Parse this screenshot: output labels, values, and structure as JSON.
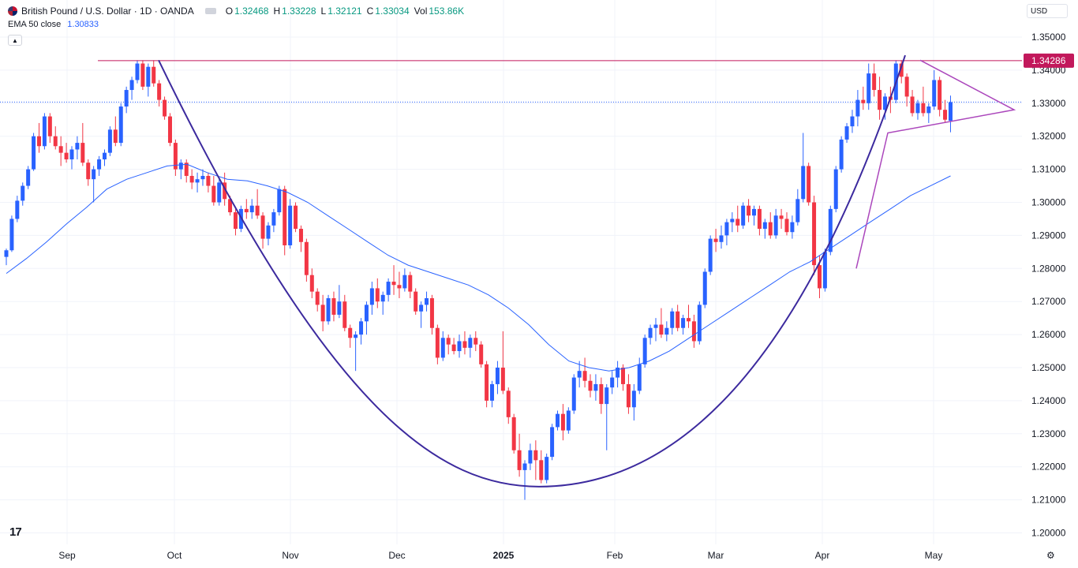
{
  "header": {
    "symbol": "British Pound / U.S. Dollar · 1D · OANDA",
    "o_label": "O",
    "o_value": "1.32468",
    "h_label": "H",
    "h_value": "1.33228",
    "l_label": "L",
    "l_value": "1.32121",
    "c_label": "C",
    "c_value": "1.33034",
    "vol_label": "Vol",
    "vol_value": "153.86K"
  },
  "indicator": {
    "name": "EMA 50 close",
    "value": "1.30833"
  },
  "currency": "USD",
  "price_tag": "1.34286",
  "colors": {
    "up": "#2962ff",
    "down": "#f23645",
    "ema": "#2962ff",
    "resistance": "#c2185b",
    "cup": "#3c2a9e",
    "triangle": "#ab47bc",
    "last_price_line": "#2962ff",
    "grid": "#f0f3fa"
  },
  "icons": {
    "flag": "gbp-usd-flag-icon",
    "logo": "tradingview-logo-icon",
    "settings": "gear-icon",
    "collapse": "chevron-up-icon"
  },
  "chart_data": {
    "type": "candlestick",
    "title": "British Pound / U.S. Dollar · 1D · OANDA",
    "y_ticks": [
      "1.35000",
      "1.34000",
      "1.33000",
      "1.32000",
      "1.31000",
      "1.30000",
      "1.29000",
      "1.28000",
      "1.27000",
      "1.26000",
      "1.25000",
      "1.24000",
      "1.23000",
      "1.22000",
      "1.21000",
      "1.20000"
    ],
    "x_ticks": [
      "Sep",
      "Oct",
      "Nov",
      "Dec",
      "2025",
      "Feb",
      "Mar",
      "Apr",
      "May"
    ],
    "ylim": [
      1.199,
      1.351
    ],
    "grid": true,
    "candles": [
      [
        1.2835,
        1.286,
        1.281,
        1.2855
      ],
      [
        1.2855,
        1.296,
        1.285,
        1.295
      ],
      [
        1.295,
        1.302,
        1.294,
        1.3005
      ],
      [
        1.3005,
        1.306,
        1.299,
        1.305
      ],
      [
        1.305,
        1.311,
        1.304,
        1.31
      ],
      [
        1.31,
        1.321,
        1.3095,
        1.32
      ],
      [
        1.32,
        1.324,
        1.315,
        1.317
      ],
      [
        1.317,
        1.327,
        1.316,
        1.326
      ],
      [
        1.326,
        1.327,
        1.318,
        1.32
      ],
      [
        1.32,
        1.323,
        1.316,
        1.317
      ],
      [
        1.317,
        1.32,
        1.311,
        1.315
      ],
      [
        1.315,
        1.318,
        1.312,
        1.313
      ],
      [
        1.313,
        1.317,
        1.31,
        1.316
      ],
      [
        1.316,
        1.32,
        1.313,
        1.318
      ],
      [
        1.318,
        1.324,
        1.311,
        1.312
      ],
      [
        1.312,
        1.313,
        1.305,
        1.307
      ],
      [
        1.307,
        1.311,
        1.3,
        1.31
      ],
      [
        1.31,
        1.314,
        1.308,
        1.313
      ],
      [
        1.313,
        1.316,
        1.311,
        1.315
      ],
      [
        1.315,
        1.323,
        1.314,
        1.322
      ],
      [
        1.322,
        1.326,
        1.317,
        1.318
      ],
      [
        1.318,
        1.33,
        1.317,
        1.329
      ],
      [
        1.329,
        1.335,
        1.327,
        1.334
      ],
      [
        1.334,
        1.338,
        1.331,
        1.337
      ],
      [
        1.337,
        1.343,
        1.336,
        1.342
      ],
      [
        1.342,
        1.343,
        1.334,
        1.335
      ],
      [
        1.335,
        1.342,
        1.332,
        1.341
      ],
      [
        1.341,
        1.343,
        1.335,
        1.336
      ],
      [
        1.336,
        1.337,
        1.329,
        1.331
      ],
      [
        1.331,
        1.332,
        1.325,
        1.326
      ],
      [
        1.326,
        1.327,
        1.317,
        1.318
      ],
      [
        1.318,
        1.319,
        1.308,
        1.31
      ],
      [
        1.31,
        1.313,
        1.307,
        1.312
      ],
      [
        1.312,
        1.313,
        1.306,
        1.308
      ],
      [
        1.308,
        1.31,
        1.304,
        1.306
      ],
      [
        1.306,
        1.309,
        1.303,
        1.307
      ],
      [
        1.307,
        1.31,
        1.305,
        1.308
      ],
      [
        1.308,
        1.309,
        1.303,
        1.305
      ],
      [
        1.305,
        1.308,
        1.299,
        1.3
      ],
      [
        1.3,
        1.307,
        1.299,
        1.306
      ],
      [
        1.306,
        1.309,
        1.299,
        1.301
      ],
      [
        1.301,
        1.302,
        1.296,
        1.297
      ],
      [
        1.297,
        1.298,
        1.29,
        1.292
      ],
      [
        1.292,
        1.299,
        1.291,
        1.298
      ],
      [
        1.298,
        1.301,
        1.295,
        1.297
      ],
      [
        1.297,
        1.301,
        1.295,
        1.299
      ],
      [
        1.299,
        1.304,
        1.295,
        1.296
      ],
      [
        1.296,
        1.297,
        1.286,
        1.289
      ],
      [
        1.289,
        1.294,
        1.287,
        1.293
      ],
      [
        1.293,
        1.298,
        1.291,
        1.297
      ],
      [
        1.297,
        1.305,
        1.296,
        1.304
      ],
      [
        1.304,
        1.305,
        1.284,
        1.287
      ],
      [
        1.287,
        1.301,
        1.286,
        1.299
      ],
      [
        1.299,
        1.3,
        1.291,
        1.292
      ],
      [
        1.292,
        1.293,
        1.285,
        1.288
      ],
      [
        1.288,
        1.289,
        1.276,
        1.278
      ],
      [
        1.278,
        1.28,
        1.271,
        1.273
      ],
      [
        1.273,
        1.274,
        1.267,
        1.269
      ],
      [
        1.269,
        1.272,
        1.261,
        1.264
      ],
      [
        1.264,
        1.272,
        1.263,
        1.271
      ],
      [
        1.271,
        1.273,
        1.264,
        1.266
      ],
      [
        1.266,
        1.275,
        1.265,
        1.27
      ],
      [
        1.27,
        1.272,
        1.261,
        1.262
      ],
      [
        1.262,
        1.263,
        1.256,
        1.259
      ],
      [
        1.259,
        1.261,
        1.249,
        1.26
      ],
      [
        1.26,
        1.265,
        1.257,
        1.264
      ],
      [
        1.264,
        1.27,
        1.26,
        1.269
      ],
      [
        1.269,
        1.276,
        1.266,
        1.274
      ],
      [
        1.274,
        1.277,
        1.268,
        1.27
      ],
      [
        1.27,
        1.273,
        1.266,
        1.272
      ],
      [
        1.272,
        1.277,
        1.27,
        1.276
      ],
      [
        1.276,
        1.281,
        1.272,
        1.275
      ],
      [
        1.275,
        1.279,
        1.271,
        1.274
      ],
      [
        1.274,
        1.28,
        1.273,
        1.278
      ],
      [
        1.278,
        1.279,
        1.271,
        1.273
      ],
      [
        1.273,
        1.274,
        1.266,
        1.267
      ],
      [
        1.267,
        1.27,
        1.262,
        1.269
      ],
      [
        1.269,
        1.273,
        1.267,
        1.271
      ],
      [
        1.271,
        1.272,
        1.26,
        1.262
      ],
      [
        1.262,
        1.263,
        1.251,
        1.253
      ],
      [
        1.253,
        1.261,
        1.252,
        1.259
      ],
      [
        1.259,
        1.26,
        1.254,
        1.257
      ],
      [
        1.257,
        1.259,
        1.254,
        1.255
      ],
      [
        1.255,
        1.26,
        1.253,
        1.258
      ],
      [
        1.258,
        1.261,
        1.254,
        1.256
      ],
      [
        1.256,
        1.26,
        1.253,
        1.259
      ],
      [
        1.259,
        1.261,
        1.255,
        1.257
      ],
      [
        1.257,
        1.258,
        1.25,
        1.251
      ],
      [
        1.251,
        1.252,
        1.238,
        1.24
      ],
      [
        1.24,
        1.246,
        1.238,
        1.245
      ],
      [
        1.245,
        1.252,
        1.242,
        1.25
      ],
      [
        1.25,
        1.261,
        1.242,
        1.243
      ],
      [
        1.243,
        1.244,
        1.233,
        1.235
      ],
      [
        1.235,
        1.236,
        1.224,
        1.225
      ],
      [
        1.225,
        1.23,
        1.217,
        1.219
      ],
      [
        1.219,
        1.222,
        1.21,
        1.221
      ],
      [
        1.221,
        1.227,
        1.219,
        1.225
      ],
      [
        1.225,
        1.228,
        1.216,
        1.222
      ],
      [
        1.222,
        1.225,
        1.215,
        1.216
      ],
      [
        1.216,
        1.224,
        1.215,
        1.223
      ],
      [
        1.223,
        1.233,
        1.222,
        1.232
      ],
      [
        1.232,
        1.237,
        1.231,
        1.236
      ],
      [
        1.236,
        1.239,
        1.228,
        1.231
      ],
      [
        1.231,
        1.238,
        1.23,
        1.237
      ],
      [
        1.237,
        1.248,
        1.236,
        1.247
      ],
      [
        1.247,
        1.252,
        1.244,
        1.249
      ],
      [
        1.249,
        1.253,
        1.244,
        1.246
      ],
      [
        1.246,
        1.248,
        1.241,
        1.243
      ],
      [
        1.243,
        1.248,
        1.24,
        1.245
      ],
      [
        1.245,
        1.247,
        1.236,
        1.239
      ],
      [
        1.239,
        1.245,
        1.225,
        1.244
      ],
      [
        1.244,
        1.249,
        1.242,
        1.247
      ],
      [
        1.247,
        1.252,
        1.244,
        1.25
      ],
      [
        1.25,
        1.251,
        1.243,
        1.245
      ],
      [
        1.245,
        1.248,
        1.236,
        1.238
      ],
      [
        1.238,
        1.245,
        1.234,
        1.243
      ],
      [
        1.243,
        1.253,
        1.242,
        1.251
      ],
      [
        1.251,
        1.26,
        1.25,
        1.259
      ],
      [
        1.259,
        1.263,
        1.257,
        1.262
      ],
      [
        1.262,
        1.265,
        1.258,
        1.263
      ],
      [
        1.263,
        1.268,
        1.259,
        1.26
      ],
      [
        1.26,
        1.264,
        1.258,
        1.262
      ],
      [
        1.262,
        1.268,
        1.26,
        1.267
      ],
      [
        1.267,
        1.269,
        1.261,
        1.262
      ],
      [
        1.262,
        1.266,
        1.26,
        1.265
      ],
      [
        1.265,
        1.269,
        1.262,
        1.264
      ],
      [
        1.264,
        1.266,
        1.256,
        1.258
      ],
      [
        1.258,
        1.27,
        1.257,
        1.269
      ],
      [
        1.269,
        1.28,
        1.268,
        1.279
      ],
      [
        1.279,
        1.29,
        1.278,
        1.289
      ],
      [
        1.289,
        1.292,
        1.285,
        1.288
      ],
      [
        1.288,
        1.293,
        1.286,
        1.29
      ],
      [
        1.29,
        1.295,
        1.287,
        1.294
      ],
      [
        1.294,
        1.297,
        1.291,
        1.295
      ],
      [
        1.295,
        1.299,
        1.291,
        1.293
      ],
      [
        1.293,
        1.3,
        1.292,
        1.299
      ],
      [
        1.299,
        1.301,
        1.294,
        1.296
      ],
      [
        1.296,
        1.299,
        1.293,
        1.298
      ],
      [
        1.298,
        1.299,
        1.29,
        1.292
      ],
      [
        1.292,
        1.295,
        1.289,
        1.294
      ],
      [
        1.294,
        1.297,
        1.289,
        1.29
      ],
      [
        1.29,
        1.298,
        1.289,
        1.296
      ],
      [
        1.296,
        1.298,
        1.292,
        1.295
      ],
      [
        1.295,
        1.297,
        1.29,
        1.291
      ],
      [
        1.291,
        1.296,
        1.289,
        1.294
      ],
      [
        1.294,
        1.304,
        1.293,
        1.301
      ],
      [
        1.301,
        1.321,
        1.3,
        1.311
      ],
      [
        1.311,
        1.312,
        1.299,
        1.3
      ],
      [
        1.3,
        1.302,
        1.278,
        1.281
      ],
      [
        1.281,
        1.284,
        1.271,
        1.274
      ],
      [
        1.274,
        1.286,
        1.273,
        1.285
      ],
      [
        1.285,
        1.299,
        1.284,
        1.298
      ],
      [
        1.298,
        1.311,
        1.297,
        1.31
      ],
      [
        1.31,
        1.32,
        1.309,
        1.319
      ],
      [
        1.319,
        1.324,
        1.318,
        1.323
      ],
      [
        1.323,
        1.328,
        1.321,
        1.326
      ],
      [
        1.326,
        1.334,
        1.323,
        1.331
      ],
      [
        1.331,
        1.335,
        1.328,
        1.33
      ],
      [
        1.33,
        1.342,
        1.328,
        1.339
      ],
      [
        1.339,
        1.342,
        1.332,
        1.334
      ],
      [
        1.334,
        1.338,
        1.325,
        1.328
      ],
      [
        1.328,
        1.333,
        1.325,
        1.332
      ],
      [
        1.332,
        1.335,
        1.327,
        1.331
      ],
      [
        1.331,
        1.343,
        1.33,
        1.342
      ],
      [
        1.342,
        1.343,
        1.336,
        1.338
      ],
      [
        1.338,
        1.339,
        1.329,
        1.332
      ],
      [
        1.332,
        1.334,
        1.326,
        1.327
      ],
      [
        1.327,
        1.331,
        1.325,
        1.33
      ],
      [
        1.33,
        1.335,
        1.326,
        1.327
      ],
      [
        1.327,
        1.33,
        1.324,
        1.329
      ],
      [
        1.329,
        1.34,
        1.328,
        1.337
      ],
      [
        1.337,
        1.338,
        1.326,
        1.328
      ],
      [
        1.328,
        1.331,
        1.324,
        1.325
      ],
      [
        1.3247,
        1.3323,
        1.3212,
        1.3303
      ]
    ],
    "ema50": [
      1.2785,
      1.283,
      1.288,
      1.2935,
      1.2985,
      1.304,
      1.307,
      1.309,
      1.311,
      1.3115,
      1.309,
      1.307,
      1.3065,
      1.305,
      1.303,
      1.3,
      1.296,
      1.292,
      1.288,
      1.284,
      1.281,
      1.279,
      1.277,
      1.275,
      1.272,
      1.268,
      1.263,
      1.257,
      1.252,
      1.25,
      1.249,
      1.25,
      1.252,
      1.255,
      1.259,
      1.263,
      1.267,
      1.271,
      1.275,
      1.279,
      1.282,
      1.286,
      1.29,
      1.294,
      1.298,
      1.302,
      1.305,
      1.308
    ],
    "resistance": 1.34286,
    "last_close": 1.33034
  }
}
